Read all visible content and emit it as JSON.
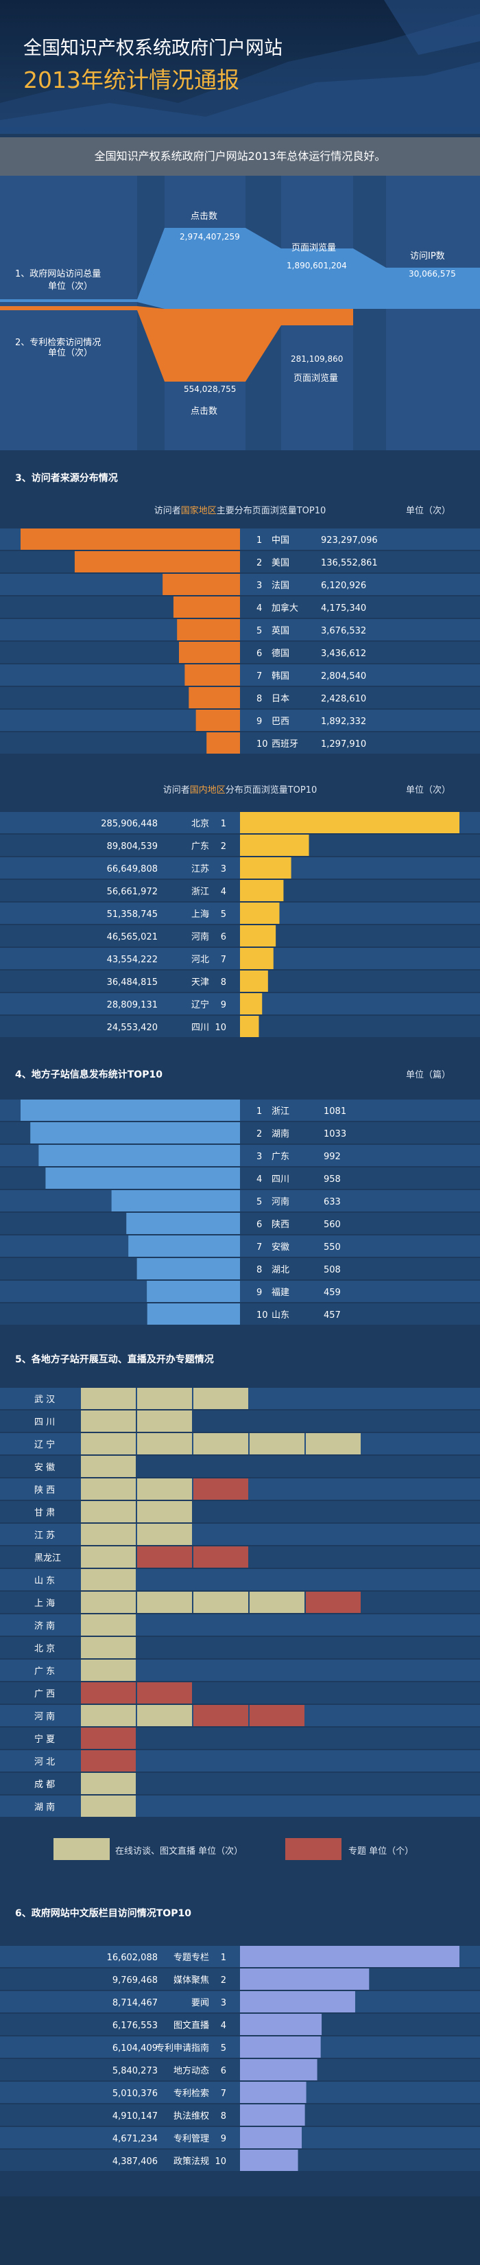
{
  "header": {
    "title_line1": "全国知识产权系统政府门户网站",
    "title_line2": "2013年统计情况通报"
  },
  "summary": "全国知识产权系统政府门户网站2013年总体运行情况良好。",
  "colors": {
    "background": "#1d3a5f",
    "band": "#2a5284",
    "blue_flow": "#4a8ed2",
    "orange": "#e8782a",
    "yellow": "#f5c03a",
    "light_blue": "#5b9bd8",
    "purple": "#8e9ee0",
    "beige": "#c9c79a",
    "red": "#b2504c"
  },
  "section1": {
    "label_visits": "1、政府网站访问总量",
    "label_visits_unit": "单位（次）",
    "label_patent": "2、专利检索访问情况",
    "label_patent_unit": "单位（次）",
    "chart_data": {
      "type": "area",
      "series": [
        {
          "name": "1、政府网站访问总量",
          "categories": [
            "点击数",
            "页面浏览量",
            "访问IP数"
          ],
          "values": [
            2974407259,
            1890601204,
            30066575
          ]
        },
        {
          "name": "2、专利检索访问情况",
          "categories": [
            "点击数",
            "页面浏览量"
          ],
          "values": [
            554028755,
            281109860
          ]
        }
      ]
    },
    "labels": {
      "clicks_top": "点击数",
      "clicks_top_value": "2,974,407,259",
      "pv_top": "页面浏览量",
      "pv_top_value": "1,890,601,204",
      "ip_top": "访问IP数",
      "ip_top_value": "30,066,575",
      "clicks_bottom": "点击数",
      "clicks_bottom_value": "554,028,755",
      "pv_bottom": "页面浏览量",
      "pv_bottom_value": "281,109,860"
    }
  },
  "section3": {
    "title": "3、访问者来源分布情况",
    "chart1": {
      "subtitle_pre": "访问者",
      "subtitle_hl": "国家地区",
      "subtitle_post": "主要分布页面浏览量TOP10",
      "unit": "单位（次）"
    },
    "chart2": {
      "subtitle_pre": "访问者",
      "subtitle_hl": "国内地区",
      "subtitle_post": "分布页面浏览量TOP10",
      "unit": "单位（次）"
    },
    "chart_data": [
      {
        "type": "bar",
        "categories": [
          "中国",
          "美国",
          "法国",
          "加拿大",
          "英国",
          "德国",
          "韩国",
          "日本",
          "巴西",
          "西班牙"
        ],
        "ranks": [
          "1",
          "2",
          "3",
          "4",
          "5",
          "6",
          "7",
          "8",
          "9",
          "10"
        ],
        "values": [
          923297096,
          136552861,
          6120926,
          4175340,
          3676532,
          3436612,
          2804540,
          2428610,
          1892332,
          1297910
        ],
        "value_labels": [
          "923,297,096",
          "136,552,861",
          "6,120,926",
          "4,175,340",
          "3,676,532",
          "3,436,612",
          "2,804,540",
          "2,428,610",
          "1,892,332",
          "1,297,910"
        ]
      },
      {
        "type": "bar",
        "categories": [
          "北京",
          "广东",
          "江苏",
          "浙江",
          "上海",
          "河南",
          "河北",
          "天津",
          "辽宁",
          "四川"
        ],
        "ranks": [
          "1",
          "2",
          "3",
          "4",
          "5",
          "6",
          "7",
          "8",
          "9",
          "10"
        ],
        "values": [
          285906448,
          89804539,
          66649808,
          56661972,
          51358745,
          46565021,
          43554222,
          36484815,
          28809131,
          24553420
        ],
        "value_labels": [
          "285,906,448",
          "89,804,539",
          "66,649,808",
          "56,661,972",
          "51,358,745",
          "46,565,021",
          "43,554,222",
          "36,484,815",
          "28,809,131",
          "24,553,420"
        ]
      }
    ]
  },
  "section4": {
    "title": "4、地方子站信息发布统计TOP10",
    "unit": "单位（篇）",
    "chart_data": {
      "type": "bar",
      "categories": [
        "浙江",
        "湖南",
        "广东",
        "四川",
        "河南",
        "陕西",
        "安徽",
        "湖北",
        "福建",
        "山东"
      ],
      "ranks": [
        "1",
        "2",
        "3",
        "4",
        "5",
        "6",
        "7",
        "8",
        "9",
        "10"
      ],
      "values": [
        1081,
        1033,
        992,
        958,
        633,
        560,
        550,
        508,
        459,
        457
      ],
      "value_labels": [
        "1081",
        "1033",
        "992",
        "958",
        "633",
        "560",
        "550",
        "508",
        "459",
        "457"
      ]
    }
  },
  "section5": {
    "title": "5、各地方子站开展互动、直播及开办专题情况",
    "legend_beige": "在线访谈、图文直播 单位（次）",
    "legend_red": "专题 单位（个）",
    "chart_data": {
      "type": "table",
      "rows": [
        {
          "name": "武  汉",
          "cells": [
            "b",
            "b",
            "b"
          ]
        },
        {
          "name": "四  川",
          "cells": [
            "b",
            "b"
          ]
        },
        {
          "name": "辽  宁",
          "cells": [
            "b",
            "b",
            "b",
            "b",
            "b"
          ]
        },
        {
          "name": "安  徽",
          "cells": [
            "b"
          ]
        },
        {
          "name": "陕  西",
          "cells": [
            "b",
            "b",
            "r"
          ]
        },
        {
          "name": "甘  肃",
          "cells": [
            "b",
            "b"
          ]
        },
        {
          "name": "江  苏",
          "cells": [
            "b",
            "b"
          ]
        },
        {
          "name": "黑龙江",
          "cells": [
            "b",
            "r",
            "r"
          ]
        },
        {
          "name": "山  东",
          "cells": [
            "b"
          ]
        },
        {
          "name": "上  海",
          "cells": [
            "b",
            "b",
            "b",
            "b",
            "r"
          ]
        },
        {
          "name": "济  南",
          "cells": [
            "b"
          ]
        },
        {
          "name": "北  京",
          "cells": [
            "b"
          ]
        },
        {
          "name": "广  东",
          "cells": [
            "b"
          ]
        },
        {
          "name": "广  西",
          "cells": [
            "r",
            "r"
          ]
        },
        {
          "name": "河  南",
          "cells": [
            "b",
            "b",
            "r",
            "r"
          ]
        },
        {
          "name": "宁  夏",
          "cells": [
            "r"
          ]
        },
        {
          "name": "河  北",
          "cells": [
            "r"
          ]
        },
        {
          "name": "成  都",
          "cells": [
            "b"
          ]
        },
        {
          "name": "湖  南",
          "cells": [
            "b"
          ]
        }
      ]
    }
  },
  "section6": {
    "title": "6、政府网站中文版栏目访问情况TOP10",
    "chart_data": {
      "type": "bar",
      "categories": [
        "专题专栏",
        "媒体聚焦",
        "要闻",
        "图文直播",
        "专利申请指南",
        "地方动态",
        "专利检索",
        "执法维权",
        "专利管理",
        "政策法规"
      ],
      "ranks": [
        "1",
        "2",
        "3",
        "4",
        "5",
        "6",
        "7",
        "8",
        "9",
        "10"
      ],
      "values": [
        16602088,
        9769468,
        8714467,
        6176553,
        6104409,
        5840273,
        5010376,
        4910147,
        4671234,
        4387406
      ],
      "value_labels": [
        "16,602,088",
        "9,769,468",
        "8,714,467",
        "6,176,553",
        "6,104,409",
        "5,840,273",
        "5,010,376",
        "4,910,147",
        "4,671,234",
        "4,387,406"
      ]
    }
  }
}
